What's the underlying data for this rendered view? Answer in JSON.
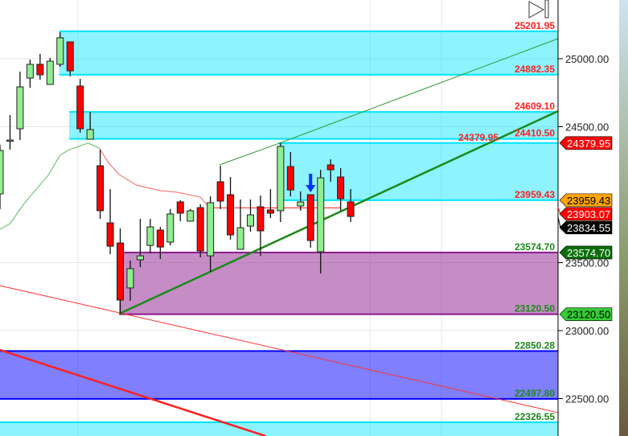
{
  "chart_data": {
    "type": "candlestick",
    "ylim": [
      22225,
      25432
    ],
    "y_ticks": [
      "25000.00",
      "24500.00",
      "23500.00",
      "23000.00",
      "22500.00"
    ],
    "y_tick_values": [
      25000,
      24500,
      23500,
      23000,
      22500
    ],
    "grid": true,
    "candles": [
      [
        24006,
        24367,
        23894,
        24325
      ],
      [
        24402,
        24586,
        24331,
        24402
      ],
      [
        24485,
        24905,
        24402,
        24793
      ],
      [
        24858,
        24994,
        24787,
        24959
      ],
      [
        24959,
        25036,
        24846,
        24882
      ],
      [
        24811,
        25006,
        24811,
        24982
      ],
      [
        24959,
        25195,
        24941,
        25154
      ],
      [
        25124,
        25124,
        24870,
        24911
      ],
      [
        24799,
        24852,
        24456,
        24485
      ],
      [
        24408,
        24609,
        24408,
        24479
      ],
      [
        24213,
        24331,
        23822,
        23882
      ],
      [
        23793,
        24041,
        23562,
        23621
      ],
      [
        23645,
        23752,
        23124,
        23225
      ],
      [
        23314,
        23515,
        23219,
        23456
      ],
      [
        23521,
        23822,
        23468,
        23550
      ],
      [
        23627,
        23822,
        23568,
        23763
      ],
      [
        23740,
        23763,
        23527,
        23615
      ],
      [
        23651,
        23894,
        23627,
        23858
      ],
      [
        23947,
        23959,
        23805,
        23864
      ],
      [
        23805,
        23894,
        23805,
        23882
      ],
      [
        23905,
        23929,
        23539,
        23586
      ],
      [
        23550,
        23988,
        23432,
        23941
      ],
      [
        24095,
        24213,
        23894,
        23953
      ],
      [
        24000,
        24130,
        23669,
        23704
      ],
      [
        23598,
        23965,
        23598,
        23757
      ],
      [
        23769,
        23965,
        23728,
        23852
      ],
      [
        23911,
        23994,
        23550,
        23734
      ],
      [
        23888,
        24041,
        23828,
        23864
      ],
      [
        23882,
        24379,
        23799,
        24355
      ],
      [
        24207,
        24314,
        23988,
        24035
      ],
      [
        23917,
        24024,
        23882,
        23947
      ],
      [
        24000,
        24000,
        23610,
        23663
      ],
      [
        23580,
        24183,
        23420,
        24124
      ],
      [
        24219,
        24260,
        24095,
        24183
      ],
      [
        24130,
        24195,
        23882,
        23970
      ],
      [
        23947,
        24041,
        23799,
        23840
      ]
    ],
    "zones": [
      {
        "from": 5.9,
        "top": 25201.95,
        "bottom": 24882.35,
        "top_label": "25201.95",
        "bottom_label": "24882.35",
        "color": "#00e5ff",
        "label_color": "#ff2020"
      },
      {
        "from": 6.9,
        "top": 24609.1,
        "bottom": 24410.5,
        "top_label": "24609.10",
        "bottom_label": "24410.50",
        "color": "#00e5ff",
        "label_color": "#ff2020"
      },
      {
        "from": 27.8,
        "top": 24379.95,
        "bottom": 23959.43,
        "top_label": "24379.95",
        "bottom_label": "23959.43",
        "color": "#00e5ff",
        "label_color": "#ff2020"
      },
      {
        "from": 11.9,
        "top": 23574.7,
        "bottom": 23120.5,
        "top_label": "23574.70",
        "bottom_label": "23120.50",
        "color": "#8b1a8b",
        "label_color": "#1a8a1a"
      },
      {
        "from": 0,
        "top": 22850.28,
        "bottom": 22497.8,
        "top_label": "22850.28",
        "bottom_label": "22497.80",
        "color": "#0000ff",
        "label_color": "#1a8a1a"
      },
      {
        "from": 0,
        "top": 22326.55,
        "bottom": 22200,
        "top_label": "22326.55",
        "bottom_label": "",
        "color": "#00e5ff",
        "label_color": "#1a8a1a"
      }
    ],
    "lines": [
      {
        "color": "#2e9a2e",
        "width": 1,
        "pts": [
          [
            21.9,
            24219
          ],
          [
            27.9,
            24379
          ],
          [
            55.7,
            25148
          ]
        ]
      },
      {
        "color": "#1a8a1a",
        "width": 2.5,
        "pts": [
          [
            11.9,
            23124
          ],
          [
            55.7,
            24615
          ]
        ]
      },
      {
        "color": "#ff3030",
        "width": 1,
        "pts": [
          [
            0,
            23331
          ],
          [
            55.7,
            22397
          ]
        ]
      },
      {
        "color": "#ff2020",
        "width": 2.5,
        "pts": [
          [
            0,
            22858
          ],
          [
            26.5,
            22225
          ]
        ]
      },
      {
        "color": "#5cb85c",
        "width": 1,
        "pts": [
          [
            0,
            23746
          ],
          [
            1,
            23787
          ],
          [
            2.4,
            23935
          ],
          [
            4.8,
            24142
          ],
          [
            6,
            24290
          ],
          [
            6.9,
            24331
          ],
          [
            8.8,
            24379
          ],
          [
            9.9,
            24343
          ]
        ]
      },
      {
        "color": "#ff6060",
        "width": 1,
        "pts": [
          [
            9.9,
            24343
          ],
          [
            10.8,
            24237
          ],
          [
            11.9,
            24148
          ],
          [
            13.6,
            24071
          ],
          [
            16,
            24030
          ],
          [
            17.7,
            24018
          ],
          [
            20,
            23982
          ],
          [
            20.9,
            23905
          ]
        ]
      },
      {
        "color": "#ff2020",
        "width": 1,
        "pts": [
          [
            20.9,
            23903.07
          ],
          [
            34,
            23903.07
          ]
        ]
      }
    ],
    "price_tags": [
      {
        "text": "24379.95",
        "value": 24379.95,
        "bg": "#ff0000",
        "fg": "#ffffff"
      },
      {
        "text": "23959.43",
        "value": 23959.43,
        "bg": "#ffa500",
        "fg": "#000000"
      },
      {
        "text": "23903.07",
        "value": 23903.07,
        "bg": "#ff0000",
        "fg": "#ffffff"
      },
      {
        "text": "23834.55",
        "value": 23834.55,
        "bg": "#000000",
        "fg": "#ffffff"
      },
      {
        "text": "23574.70",
        "value": 23574.7,
        "bg": "#0a6e0a",
        "fg": "#ffffff"
      },
      {
        "text": "23120.50",
        "value": 23120.5,
        "bg": "#33cc33",
        "fg": "#000000"
      }
    ],
    "arrow": {
      "index": 31,
      "direction": "down",
      "color": "#0033ff"
    },
    "colors": {
      "up": "#90ee90",
      "down": "#ff0000"
    }
  },
  "toolbar": {
    "icon": "skip-to-end-icon"
  }
}
